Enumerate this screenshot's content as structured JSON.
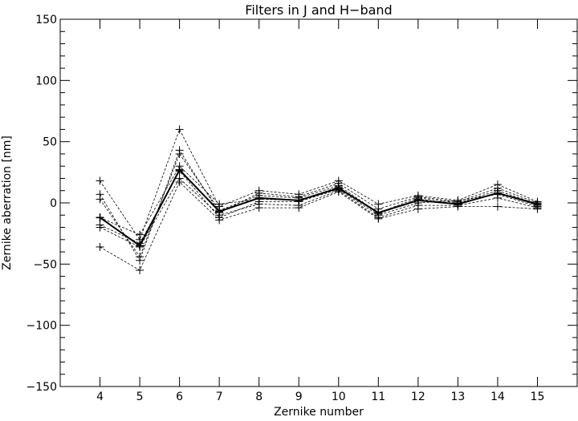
{
  "chart_data": {
    "type": "line",
    "title": "Filters in J and H−band",
    "xlabel": "Zernike number",
    "ylabel": "Zernike aberration [nm]",
    "x": [
      4,
      5,
      6,
      7,
      8,
      9,
      10,
      11,
      12,
      13,
      14,
      15
    ],
    "xlim": [
      3,
      16
    ],
    "ylim": [
      -150,
      150
    ],
    "xticks": [
      "4",
      "5",
      "6",
      "7",
      "8",
      "9",
      "10",
      "11",
      "12",
      "13",
      "14",
      "15"
    ],
    "yticks": [
      "−150",
      "−100",
      "−50",
      "0",
      "50",
      "100",
      "150"
    ],
    "ytick_values": [
      -150,
      -100,
      -50,
      0,
      50,
      100,
      150
    ],
    "grid": false,
    "marker": "+",
    "series": [
      {
        "values": [
          18,
          -30,
          60,
          -3,
          10,
          7,
          18,
          -1,
          6,
          2,
          15,
          1
        ],
        "style": "dashed"
      },
      {
        "values": [
          7,
          -47,
          43,
          -8,
          8,
          5,
          16,
          -5,
          5,
          1,
          12,
          0
        ],
        "style": "dashed"
      },
      {
        "values": [
          3,
          -44,
          40,
          -6,
          6,
          4,
          14,
          -8,
          4,
          0,
          10,
          -1
        ],
        "style": "dashed"
      },
      {
        "values": [
          -12,
          -26,
          30,
          -1,
          3,
          2,
          13,
          -9,
          3,
          -1,
          8,
          -2
        ],
        "style": "dashed"
      },
      {
        "values": [
          -18,
          -33,
          26,
          -12,
          1,
          1,
          11,
          -10,
          0,
          2,
          7,
          -3
        ],
        "style": "dashed"
      },
      {
        "values": [
          -20,
          -36,
          20,
          -10,
          -1,
          -2,
          10,
          -12,
          -2,
          -2,
          4,
          -4
        ],
        "style": "dashed"
      },
      {
        "values": [
          -36,
          -55,
          17,
          -14,
          -4,
          -4,
          9,
          -13,
          -5,
          -3,
          -3,
          -5
        ],
        "style": "dashed"
      },
      {
        "values": [
          -12,
          -35,
          27,
          -7,
          4,
          2,
          12,
          -8,
          2,
          -1,
          8,
          -1
        ],
        "style": "solid-bold"
      }
    ]
  }
}
